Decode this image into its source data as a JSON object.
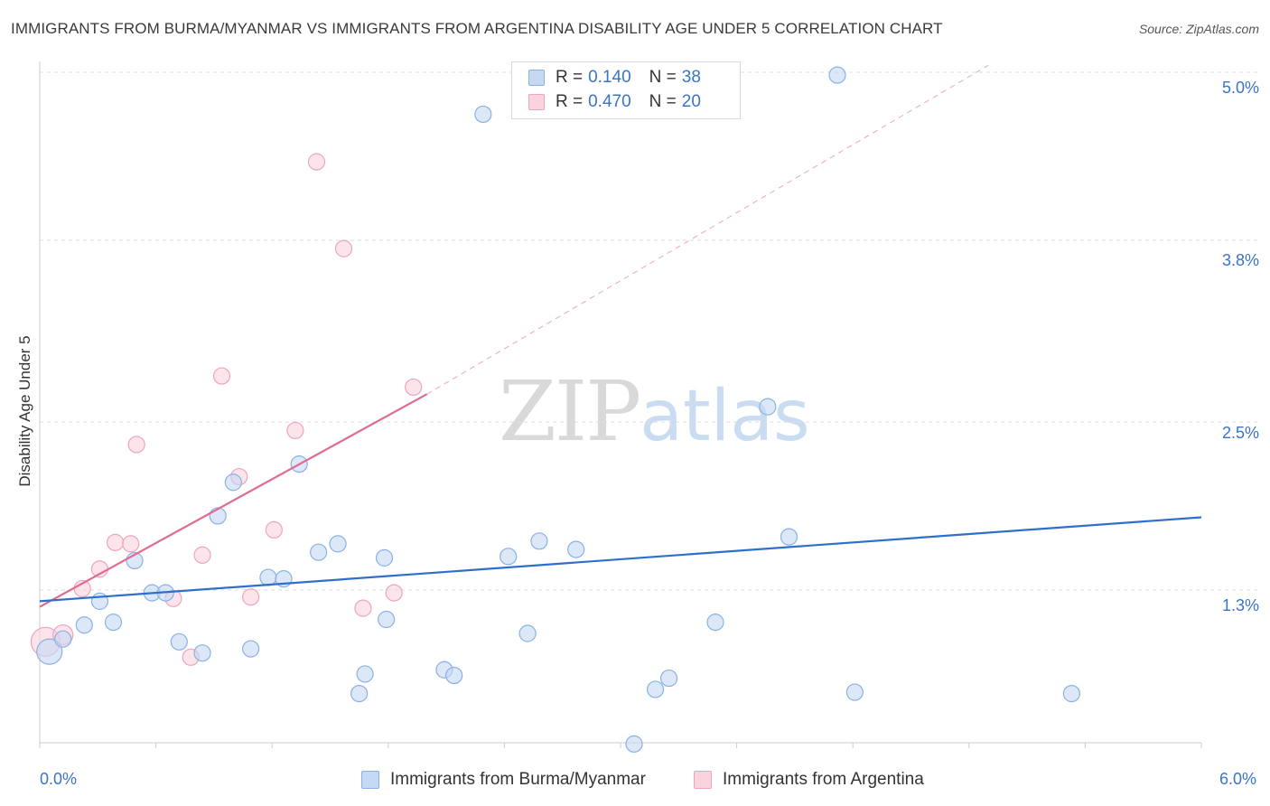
{
  "title": "IMMIGRANTS FROM BURMA/MYANMAR VS IMMIGRANTS FROM ARGENTINA DISABILITY AGE UNDER 5 CORRELATION CHART",
  "source": "Source: ZipAtlas.com",
  "watermark": {
    "zip": "ZIP",
    "atlas": "atlas"
  },
  "legend_box": {
    "rows": [
      {
        "r_label": "R =",
        "r_value": "0.140",
        "n_label": "N =",
        "n_value": "38"
      },
      {
        "r_label": "R =",
        "r_value": "0.470",
        "n_label": "N =",
        "n_value": "20"
      }
    ]
  },
  "colors": {
    "burma_fill": "#c5d9f3",
    "burma_stroke": "#8ab1e3",
    "burma_line": "#2f6fcc",
    "argentina_fill": "#f9d3de",
    "argentina_stroke": "#eda5bb",
    "argentina_line": "#e06a90",
    "tick_text": "#3a74c8",
    "grid": "#dddddd"
  },
  "chart_data": {
    "type": "scatter",
    "title": "IMMIGRANTS FROM BURMA/MYANMAR VS IMMIGRANTS FROM ARGENTINA DISABILITY AGE UNDER 5 CORRELATION CHART",
    "xlabel": "",
    "ylabel": "Disability Age Under 5",
    "xlim": [
      0.0,
      6.0
    ],
    "ylim": [
      0.0,
      5.2
    ],
    "x_tick_labels": [
      "0.0%",
      "6.0%"
    ],
    "y_ticks": [
      1.3,
      2.5,
      3.8,
      5.0
    ],
    "y_tick_labels": [
      "1.3%",
      "2.5%",
      "3.8%",
      "5.0%"
    ],
    "grid": true,
    "legend_position": "bottom",
    "series": [
      {
        "name": "Immigrants from Burma/Myanmar",
        "r": 0.14,
        "n": 38,
        "trend": {
          "x0": 0.0,
          "y0": 1.22,
          "x1": 6.0,
          "y1": 1.82
        },
        "points": [
          [
            0.05,
            0.86,
            14
          ],
          [
            0.12,
            0.95,
            9
          ],
          [
            0.23,
            1.05,
            9
          ],
          [
            0.31,
            1.22,
            9
          ],
          [
            0.38,
            1.07,
            9
          ],
          [
            0.49,
            1.51,
            9
          ],
          [
            0.58,
            1.28,
            9
          ],
          [
            0.65,
            1.28,
            9
          ],
          [
            0.72,
            0.93,
            9
          ],
          [
            0.84,
            0.85,
            9
          ],
          [
            0.92,
            1.83,
            9
          ],
          [
            1.0,
            2.07,
            9
          ],
          [
            1.09,
            0.88,
            9
          ],
          [
            1.18,
            1.39,
            9
          ],
          [
            1.26,
            1.38,
            9
          ],
          [
            1.34,
            2.2,
            9
          ],
          [
            1.44,
            1.57,
            9
          ],
          [
            1.54,
            1.63,
            9
          ],
          [
            1.65,
            0.56,
            9
          ],
          [
            1.68,
            0.7,
            9
          ],
          [
            1.78,
            1.53,
            9
          ],
          [
            1.79,
            1.09,
            9
          ],
          [
            2.09,
            0.73,
            9
          ],
          [
            2.14,
            0.69,
            9
          ],
          [
            2.29,
            4.7,
            9
          ],
          [
            2.42,
            1.54,
            9
          ],
          [
            2.52,
            0.99,
            9
          ],
          [
            2.58,
            1.65,
            9
          ],
          [
            2.77,
            1.59,
            9
          ],
          [
            3.07,
            0.2,
            9
          ],
          [
            3.18,
            0.59,
            9
          ],
          [
            3.25,
            0.67,
            9
          ],
          [
            3.49,
            1.07,
            9
          ],
          [
            3.76,
            2.61,
            9
          ],
          [
            3.87,
            1.68,
            9
          ],
          [
            4.12,
            4.98,
            9
          ],
          [
            4.21,
            0.57,
            9
          ],
          [
            5.33,
            0.56,
            9
          ]
        ]
      },
      {
        "name": "Immigrants from Argentina",
        "r": 0.47,
        "n": 20,
        "trend": {
          "x0": 0.0,
          "y0": 1.18,
          "x1": 2.0,
          "y1": 2.7
        },
        "trend_ext": {
          "x0": 2.0,
          "y0": 2.7,
          "x1": 4.9,
          "y1": 5.05
        },
        "points": [
          [
            0.03,
            0.93,
            16
          ],
          [
            0.12,
            0.98,
            11
          ],
          [
            0.22,
            1.31,
            9
          ],
          [
            0.31,
            1.45,
            9
          ],
          [
            0.39,
            1.64,
            9
          ],
          [
            0.47,
            1.63,
            9
          ],
          [
            0.5,
            2.34,
            9
          ],
          [
            0.69,
            1.24,
            9
          ],
          [
            0.78,
            0.82,
            9
          ],
          [
            0.84,
            1.55,
            9
          ],
          [
            0.94,
            2.83,
            9
          ],
          [
            1.03,
            2.11,
            9
          ],
          [
            1.09,
            1.25,
            9
          ],
          [
            1.21,
            1.73,
            9
          ],
          [
            1.32,
            2.44,
            9
          ],
          [
            1.43,
            4.36,
            9
          ],
          [
            1.57,
            3.74,
            9
          ],
          [
            1.67,
            1.17,
            9
          ],
          [
            1.83,
            1.28,
            9
          ],
          [
            1.93,
            2.75,
            9
          ]
        ]
      }
    ]
  },
  "bottom_legend": {
    "burma": "Immigrants from Burma/Myanmar",
    "argentina": "Immigrants from Argentina"
  }
}
